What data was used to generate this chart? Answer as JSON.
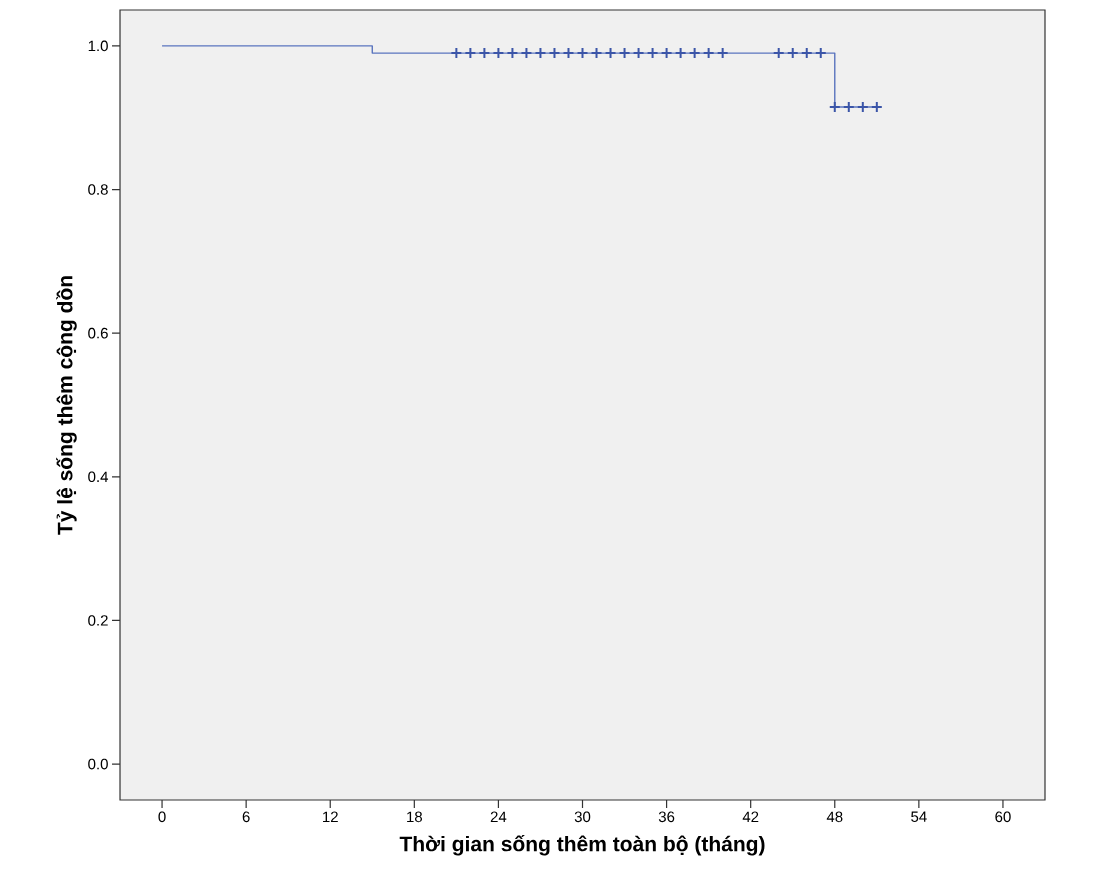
{
  "chart_data": {
    "type": "step",
    "xlabel": "Thời gian sống thêm toàn bộ (tháng)",
    "ylabel": "Tỷ lệ sống thêm cộng dồn",
    "xlim": [
      -3,
      63
    ],
    "ylim": [
      -0.05,
      1.05
    ],
    "xticks": [
      0,
      6,
      12,
      18,
      24,
      30,
      36,
      42,
      48,
      54,
      60
    ],
    "yticks": [
      {
        "value": 0,
        "label": "0.0"
      },
      {
        "value": 0.2,
        "label": "0.2"
      },
      {
        "value": 0.4,
        "label": "0.4"
      },
      {
        "value": 0.6,
        "label": "0.6"
      },
      {
        "value": 0.8,
        "label": "0.8"
      },
      {
        "value": 1,
        "label": "1.0"
      }
    ],
    "grid": false,
    "series": [
      {
        "color": "#5a74be",
        "x": [
          0,
          15,
          48,
          51
        ],
        "values": [
          1.0,
          0.99,
          0.915,
          0.915
        ]
      },
      {
        "type": "scatter",
        "marker": "cross",
        "color": "#3b55a8",
        "x": [
          21,
          22,
          23,
          24,
          25,
          26,
          27,
          28,
          29,
          30,
          31,
          32,
          33,
          34,
          35,
          36,
          37,
          38,
          39,
          40,
          44,
          45,
          46,
          47,
          48,
          49,
          50,
          51
        ],
        "values": [
          0.99,
          0.99,
          0.99,
          0.99,
          0.99,
          0.99,
          0.99,
          0.99,
          0.99,
          0.99,
          0.99,
          0.99,
          0.99,
          0.99,
          0.99,
          0.99,
          0.99,
          0.99,
          0.99,
          0.99,
          0.99,
          0.99,
          0.99,
          0.99,
          0.915,
          0.915,
          0.915,
          0.915
        ]
      }
    ]
  }
}
